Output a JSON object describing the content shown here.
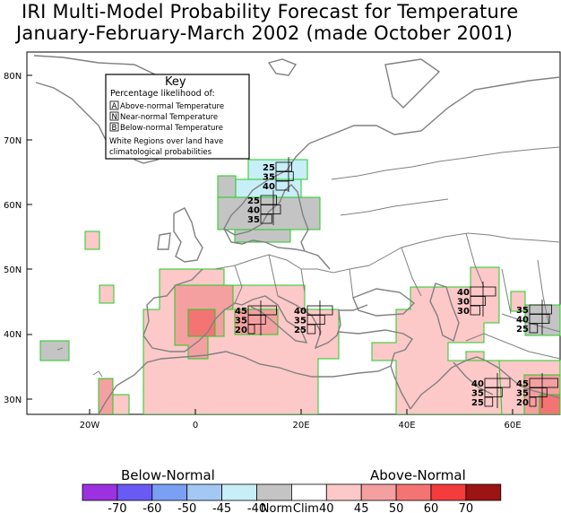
{
  "title": {
    "line1": "IRI Multi-Model Probability Forecast for Temperature",
    "line2": "January-February-March 2002 (made October 2001)"
  },
  "axes": {
    "lat_labels": [
      "80N",
      "70N",
      "60N",
      "50N",
      "40N",
      "30N"
    ],
    "lon_labels": [
      "20W",
      "0",
      "20E",
      "40E",
      "60E"
    ]
  },
  "key": {
    "title": "Key",
    "subtitle": "Percentage likelihood of:",
    "above": "Above-normal Temperature",
    "near": "Near-normal Temperature",
    "below": "Below-normal Temperature",
    "above_letter": "A",
    "near_letter": "N",
    "below_letter": "B",
    "note1": "White Regions over land have",
    "note2": "climatological probabilities"
  },
  "colorbar": {
    "below_label": "Below-Normal",
    "above_label": "Above-Normal",
    "ticks": [
      "-70",
      "-60",
      "-50",
      "-45",
      "-40",
      "Norm",
      "Clim",
      "40",
      "45",
      "50",
      "60",
      "70"
    ],
    "colors": [
      "#9c31e0",
      "#6a5af4",
      "#7aa0f4",
      "#a4c8f4",
      "#c8eef8",
      "#c4c4c4",
      "#ffffff",
      "#fcc8c8",
      "#f4a0a0",
      "#f47474",
      "#f43c3c",
      "#9c1414"
    ]
  },
  "prob_boxes": [
    {
      "id": "scandinavia-north",
      "vals": [
        "25",
        "35",
        "40"
      ]
    },
    {
      "id": "scandinavia-south",
      "vals": [
        "25",
        "40",
        "35"
      ]
    },
    {
      "id": "iberia-france",
      "vals": [
        "45",
        "35",
        "20"
      ]
    },
    {
      "id": "italy-balkans",
      "vals": [
        "40",
        "35",
        "25"
      ]
    },
    {
      "id": "central-asia-north",
      "vals": [
        "40",
        "30",
        "30"
      ]
    },
    {
      "id": "central-asia-east",
      "vals": [
        "35",
        "40",
        "25"
      ]
    },
    {
      "id": "middle-east",
      "vals": [
        "40",
        "35",
        "25"
      ]
    },
    {
      "id": "south-asia",
      "vals": [
        "45",
        "35",
        "20"
      ]
    }
  ]
}
